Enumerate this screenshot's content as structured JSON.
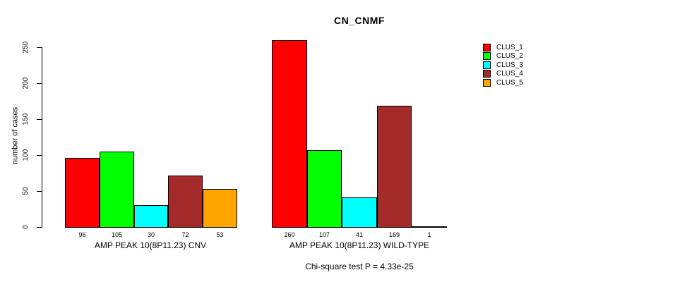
{
  "title": "CN_CNMF",
  "y_axis": {
    "label": "number of cases",
    "ticks": [
      0,
      50,
      100,
      150,
      200,
      250
    ]
  },
  "footnote": "Chi-square test P = 4.33e-25",
  "legend": {
    "entries": [
      {
        "label": "CLUS_1",
        "color": "#FF0000"
      },
      {
        "label": "CLUS_2",
        "color": "#00FF00"
      },
      {
        "label": "CLUS_3",
        "color": "#00FFFF"
      },
      {
        "label": "CLUS_4",
        "color": "#A52A2A"
      },
      {
        "label": "CLUS_5",
        "color": "#FFA500"
      }
    ]
  },
  "chart_data": {
    "type": "bar",
    "title": "CN_CNMF",
    "xlabel": "",
    "ylabel": "number of cases",
    "ylim": [
      0,
      260
    ],
    "grid": false,
    "legend_position": "top-right",
    "bar_value_labels": true,
    "categories": [
      "AMP PEAK 10(8P11.23) CNV",
      "AMP PEAK 10(8P11.23) WILD-TYPE"
    ],
    "series": [
      {
        "name": "CLUS_1",
        "color": "#FF0000",
        "values": [
          96,
          260
        ]
      },
      {
        "name": "CLUS_2",
        "color": "#00FF00",
        "values": [
          105,
          107
        ]
      },
      {
        "name": "CLUS_3",
        "color": "#00FFFF",
        "values": [
          30,
          41
        ]
      },
      {
        "name": "CLUS_4",
        "color": "#A52A2A",
        "values": [
          72,
          169
        ]
      },
      {
        "name": "CLUS_5",
        "color": "#FFA500",
        "values": [
          53,
          1
        ]
      }
    ],
    "annotations": [
      "Chi-square test P = 4.33e-25"
    ]
  }
}
